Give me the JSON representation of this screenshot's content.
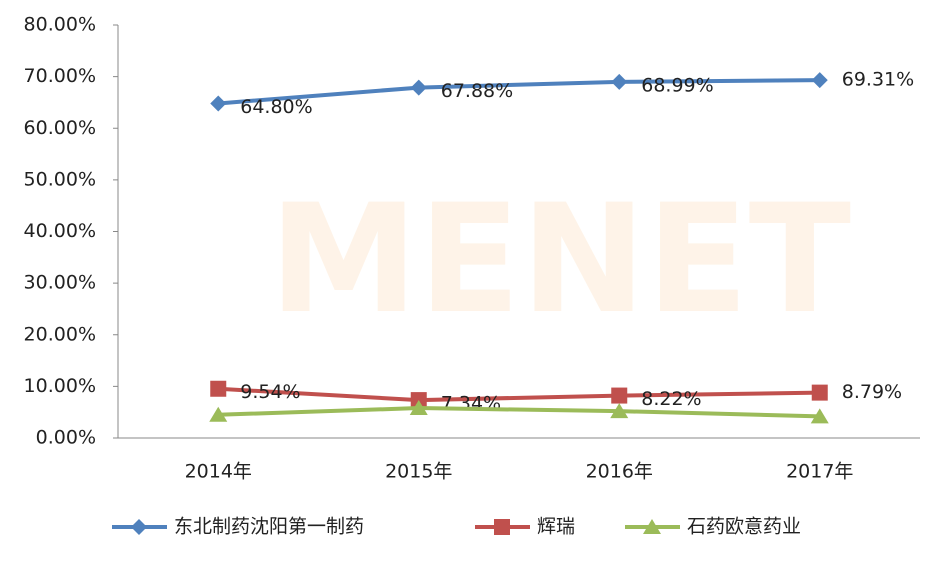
{
  "chart_data": {
    "type": "line",
    "watermark": "MENET",
    "categories": [
      "2014年",
      "2015年",
      "2016年",
      "2017年"
    ],
    "series": [
      {
        "name": "东北制药沈阳第一制药",
        "color": "#4f81bd",
        "marker": "diamond",
        "values": [
          64.8,
          67.88,
          68.99,
          69.31
        ],
        "value_labels": [
          "64.80%",
          "67.88%",
          "68.99%",
          "69.31%"
        ]
      },
      {
        "name": "辉瑞",
        "color": "#c0504d",
        "marker": "square",
        "values": [
          9.54,
          7.34,
          8.22,
          8.79
        ],
        "value_labels": [
          "9.54%",
          "7.34%",
          "8.22%",
          "8.79%"
        ]
      },
      {
        "name": "石药欧意药业",
        "color": "#9bbb59",
        "marker": "triangle",
        "values": [
          4.5,
          5.8,
          5.2,
          4.2
        ]
      }
    ],
    "ylim": [
      0,
      80
    ],
    "yticks": [
      {
        "value": 0,
        "label": "0.00%"
      },
      {
        "value": 10,
        "label": "10.00%"
      },
      {
        "value": 20,
        "label": "20.00%"
      },
      {
        "value": 30,
        "label": "30.00%"
      },
      {
        "value": 40,
        "label": "40.00%"
      },
      {
        "value": 50,
        "label": "50.00%"
      },
      {
        "value": 60,
        "label": "60.00%"
      },
      {
        "value": 70,
        "label": "70.00%"
      },
      {
        "value": 80,
        "label": "80.00%"
      }
    ],
    "legend": "bottom"
  }
}
